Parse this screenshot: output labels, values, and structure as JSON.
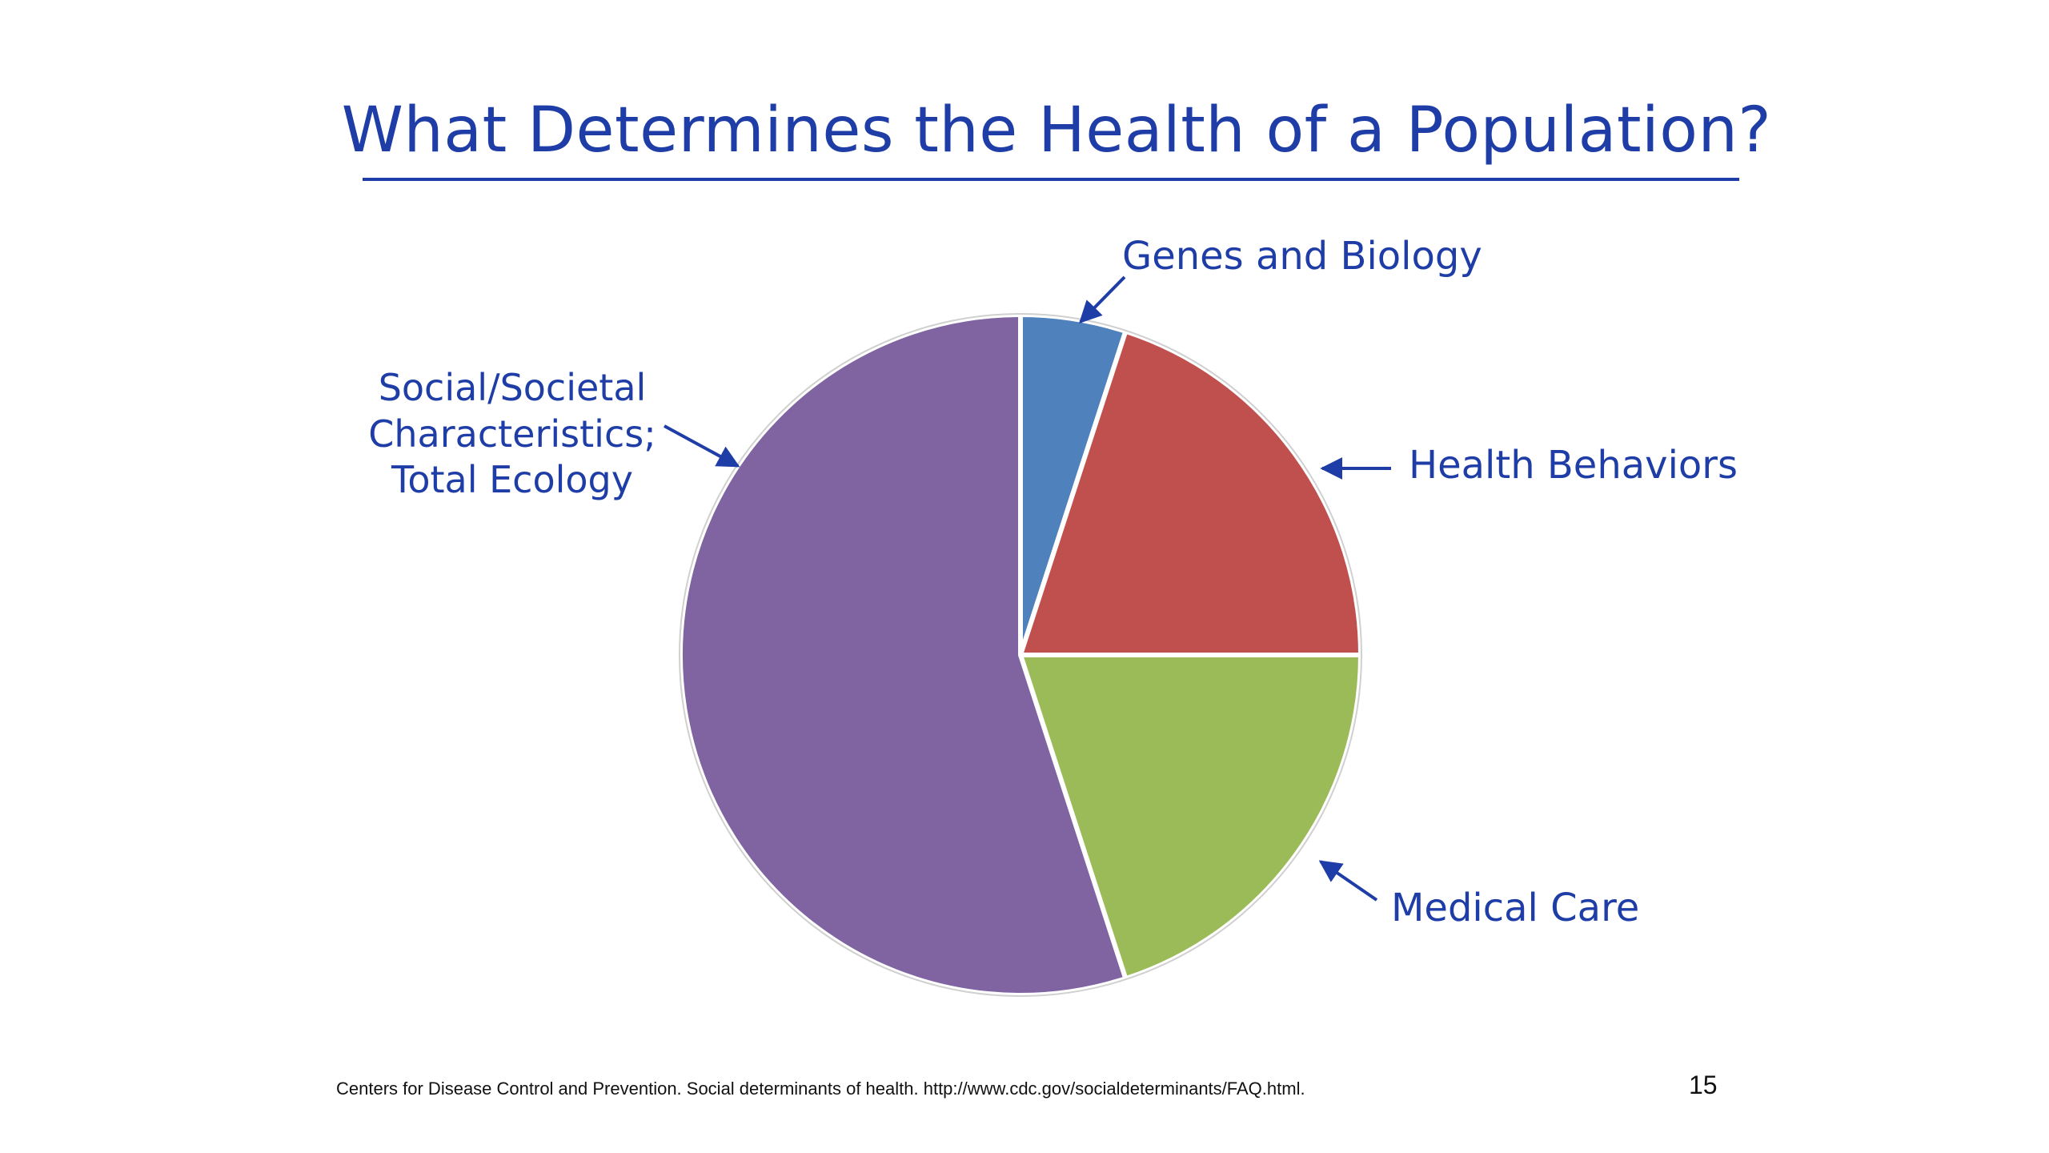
{
  "slide": {
    "title": "What Determines the Health of a Population?",
    "footer": "Centers for Disease Control and Prevention. Social determinants of health. http://www.cdc.gov/socialdeterminants/FAQ.html.",
    "page_number": "15"
  },
  "colors": {
    "title": "#1f3da6",
    "label": "#1f3da6",
    "genes": "#4f81bd",
    "behaviors": "#c0504d",
    "medical": "#9bbb59",
    "social": "#8064a2",
    "slice_border": "#ffffff"
  },
  "chart_data": {
    "type": "pie",
    "title": "What Determines the Health of a Population?",
    "start_angle_deg": 0,
    "direction": "clockwise",
    "labels": [
      "Genes and Biology",
      "Health Behaviors",
      "Medical Care",
      "Social/Societal Characteristics; Total Ecology"
    ],
    "values": [
      5,
      20,
      20,
      55
    ],
    "colors": [
      "#4f81bd",
      "#c0504d",
      "#9bbb59",
      "#8064a2"
    ],
    "label_lines": {
      "social": [
        "Social/Societal",
        "Characteristics;",
        "Total Ecology"
      ]
    },
    "legend": "none (labels with arrows)"
  }
}
